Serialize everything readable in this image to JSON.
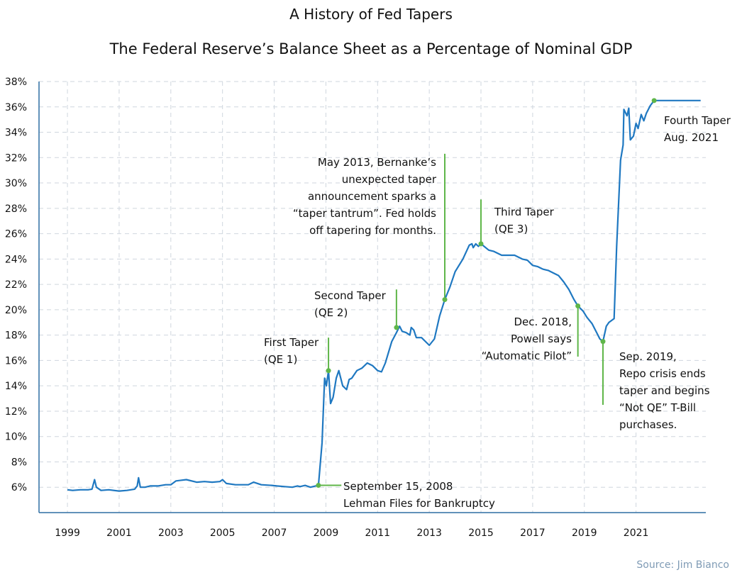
{
  "title": "A History of Fed Tapers",
  "subtitle": "The Federal Reserve’s Balance Sheet as a Percentage of Nominal GDP",
  "source": "Source: Jim Bianco",
  "colors": {
    "line": "#1f78c1",
    "annotation": "#5fb649",
    "axis": "#2f6ea3",
    "grid": "#cfd6de",
    "text": "#111111",
    "source": "#7f9bb5"
  },
  "chart_data": {
    "type": "line",
    "title": "A History of Fed Tapers",
    "subtitle": "The Federal Reserve’s Balance Sheet as a Percentage of Nominal GDP",
    "xlabel": "",
    "ylabel": "",
    "xlim": [
      1997.9,
      2023.7
    ],
    "ylim": [
      4,
      38
    ],
    "grid": true,
    "x_ticks": [
      "1999",
      "2001",
      "2003",
      "2005",
      "2007",
      "2009",
      "2011",
      "2013",
      "2015",
      "2017",
      "2019",
      "2021"
    ],
    "y_ticks": [
      "6%",
      "8%",
      "10%",
      "12%",
      "14%",
      "16%",
      "18%",
      "20%",
      "22%",
      "24%",
      "26%",
      "28%",
      "30%",
      "32%",
      "34%",
      "36%",
      "38%"
    ],
    "series": [
      {
        "points": [
          [
            1999.0,
            5.8
          ],
          [
            1999.2,
            5.75
          ],
          [
            1999.5,
            5.8
          ],
          [
            1999.8,
            5.8
          ],
          [
            1999.95,
            5.85
          ],
          [
            2000.05,
            6.6
          ],
          [
            2000.12,
            6.0
          ],
          [
            2000.3,
            5.75
          ],
          [
            2000.6,
            5.8
          ],
          [
            2001.0,
            5.7
          ],
          [
            2001.3,
            5.75
          ],
          [
            2001.6,
            5.85
          ],
          [
            2001.7,
            6.1
          ],
          [
            2001.75,
            6.75
          ],
          [
            2001.82,
            6.0
          ],
          [
            2002.0,
            6.0
          ],
          [
            2002.2,
            6.1
          ],
          [
            2002.5,
            6.1
          ],
          [
            2002.8,
            6.2
          ],
          [
            2003.0,
            6.2
          ],
          [
            2003.2,
            6.5
          ],
          [
            2003.6,
            6.6
          ],
          [
            2004.0,
            6.4
          ],
          [
            2004.3,
            6.45
          ],
          [
            2004.6,
            6.4
          ],
          [
            2004.9,
            6.45
          ],
          [
            2005.0,
            6.6
          ],
          [
            2005.15,
            6.3
          ],
          [
            2005.5,
            6.2
          ],
          [
            2005.8,
            6.2
          ],
          [
            2006.0,
            6.2
          ],
          [
            2006.2,
            6.4
          ],
          [
            2006.5,
            6.2
          ],
          [
            2006.9,
            6.15
          ],
          [
            2007.1,
            6.1
          ],
          [
            2007.4,
            6.05
          ],
          [
            2007.7,
            6.0
          ],
          [
            2007.9,
            6.1
          ],
          [
            2008.0,
            6.05
          ],
          [
            2008.2,
            6.15
          ],
          [
            2008.4,
            6.0
          ],
          [
            2008.6,
            6.1
          ],
          [
            2008.71,
            6.15
          ],
          [
            2008.85,
            9.5
          ],
          [
            2008.95,
            14.6
          ],
          [
            2009.02,
            14.0
          ],
          [
            2009.1,
            15.2
          ],
          [
            2009.18,
            12.6
          ],
          [
            2009.28,
            13.1
          ],
          [
            2009.4,
            14.6
          ],
          [
            2009.5,
            15.2
          ],
          [
            2009.65,
            14.0
          ],
          [
            2009.8,
            13.7
          ],
          [
            2009.9,
            14.5
          ],
          [
            2010.0,
            14.6
          ],
          [
            2010.2,
            15.2
          ],
          [
            2010.4,
            15.4
          ],
          [
            2010.6,
            15.8
          ],
          [
            2010.8,
            15.6
          ],
          [
            2011.0,
            15.2
          ],
          [
            2011.15,
            15.1
          ],
          [
            2011.3,
            15.8
          ],
          [
            2011.55,
            17.5
          ],
          [
            2011.73,
            18.2
          ],
          [
            2011.85,
            18.7
          ],
          [
            2011.95,
            18.3
          ],
          [
            2012.1,
            18.2
          ],
          [
            2012.25,
            18.0
          ],
          [
            2012.3,
            18.6
          ],
          [
            2012.4,
            18.4
          ],
          [
            2012.5,
            17.8
          ],
          [
            2012.7,
            17.8
          ],
          [
            2012.9,
            17.4
          ],
          [
            2013.0,
            17.2
          ],
          [
            2013.2,
            17.7
          ],
          [
            2013.4,
            19.5
          ],
          [
            2013.6,
            20.8
          ],
          [
            2013.8,
            21.8
          ],
          [
            2014.0,
            23.0
          ],
          [
            2014.3,
            24.0
          ],
          [
            2014.55,
            25.1
          ],
          [
            2014.65,
            25.2
          ],
          [
            2014.7,
            24.9
          ],
          [
            2014.8,
            25.2
          ],
          [
            2014.9,
            25.0
          ],
          [
            2015.0,
            25.2
          ],
          [
            2015.3,
            24.7
          ],
          [
            2015.5,
            24.6
          ],
          [
            2015.8,
            24.3
          ],
          [
            2016.0,
            24.3
          ],
          [
            2016.3,
            24.3
          ],
          [
            2016.6,
            24.0
          ],
          [
            2016.8,
            23.9
          ],
          [
            2017.0,
            23.5
          ],
          [
            2017.2,
            23.4
          ],
          [
            2017.4,
            23.2
          ],
          [
            2017.6,
            23.1
          ],
          [
            2017.8,
            22.9
          ],
          [
            2018.0,
            22.7
          ],
          [
            2018.2,
            22.2
          ],
          [
            2018.4,
            21.6
          ],
          [
            2018.6,
            20.8
          ],
          [
            2018.75,
            20.3
          ],
          [
            2018.95,
            19.9
          ],
          [
            2019.1,
            19.4
          ],
          [
            2019.3,
            18.9
          ],
          [
            2019.5,
            18.1
          ],
          [
            2019.6,
            17.7
          ],
          [
            2019.72,
            17.5
          ],
          [
            2019.85,
            18.7
          ],
          [
            2019.95,
            19.0
          ],
          [
            2020.15,
            19.3
          ],
          [
            2020.25,
            25.0
          ],
          [
            2020.4,
            31.8
          ],
          [
            2020.5,
            33.0
          ],
          [
            2020.53,
            35.8
          ],
          [
            2020.65,
            35.3
          ],
          [
            2020.72,
            35.9
          ],
          [
            2020.78,
            33.4
          ],
          [
            2020.9,
            33.7
          ],
          [
            2021.0,
            34.7
          ],
          [
            2021.08,
            34.3
          ],
          [
            2021.2,
            35.4
          ],
          [
            2021.3,
            34.9
          ],
          [
            2021.4,
            35.5
          ],
          [
            2021.55,
            36.1
          ],
          [
            2021.7,
            36.5
          ],
          [
            2023.5,
            36.5
          ]
        ]
      }
    ],
    "annotations": [
      {
        "x": 2008.71,
        "y": 6.15,
        "label_lines": [
          "September 15, 2008",
          "Lehman Files for Bankruptcy"
        ]
      },
      {
        "x": 2009.1,
        "y": 15.2,
        "label_lines": [
          "First Taper",
          "(QE 1)"
        ]
      },
      {
        "x": 2011.73,
        "y": 18.6,
        "label_lines": [
          "Second Taper",
          "(QE 2)"
        ]
      },
      {
        "x": 2013.6,
        "y": 20.8,
        "label_lines": [
          "May 2013, Bernanke’s",
          "unexpected taper",
          "announcement sparks a",
          "“taper tantrum”. Fed holds",
          "off tapering for months."
        ]
      },
      {
        "x": 2015.0,
        "y": 25.2,
        "label_lines": [
          "Third Taper",
          "(QE 3)"
        ]
      },
      {
        "x": 2018.75,
        "y": 20.3,
        "label_lines": [
          "Dec. 2018,",
          "Powell says",
          "“Automatic Pilot”"
        ]
      },
      {
        "x": 2019.72,
        "y": 17.5,
        "label_lines": [
          "Sep. 2019,",
          "Repo crisis ends",
          "taper and begins",
          "“Not QE” T-Bill",
          "purchases."
        ]
      },
      {
        "x": 2021.7,
        "y": 36.5,
        "label_lines": [
          "Fourth Taper",
          "Aug. 2021"
        ]
      }
    ]
  }
}
